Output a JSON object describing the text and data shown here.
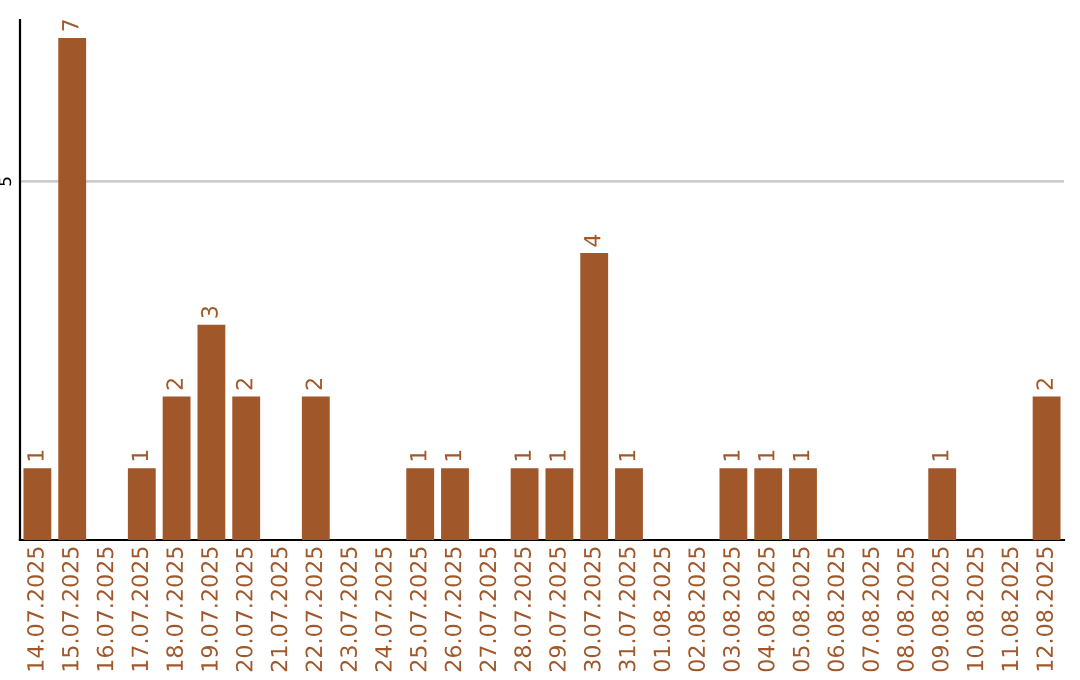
{
  "chart_data": {
    "type": "bar",
    "categories": [
      "14.07.2025",
      "15.07.2025",
      "16.07.2025",
      "17.07.2025",
      "18.07.2025",
      "19.07.2025",
      "20.07.2025",
      "21.07.2025",
      "22.07.2025",
      "23.07.2025",
      "24.07.2025",
      "25.07.2025",
      "26.07.2025",
      "27.07.2025",
      "28.07.2025",
      "29.07.2025",
      "30.07.2025",
      "31.07.2025",
      "01.08.2025",
      "02.08.2025",
      "03.08.2025",
      "04.08.2025",
      "05.08.2025",
      "06.08.2025",
      "07.08.2025",
      "08.08.2025",
      "09.08.2025",
      "10.08.2025",
      "11.08.2025",
      "12.08.2025"
    ],
    "values": [
      1,
      7,
      0,
      1,
      2,
      3,
      2,
      0,
      2,
      0,
      0,
      1,
      1,
      0,
      1,
      1,
      4,
      1,
      0,
      0,
      1,
      1,
      1,
      0,
      0,
      0,
      1,
      0,
      0,
      2
    ],
    "value_labels": [
      "1",
      "7",
      null,
      "1",
      "2",
      "3",
      "2",
      null,
      "2",
      null,
      null,
      "1",
      "1",
      null,
      "1",
      "1",
      "4",
      "1",
      null,
      null,
      "1",
      "1",
      "1",
      null,
      null,
      null,
      "1",
      null,
      null,
      "2"
    ],
    "color": "#a0572a",
    "ylim": [
      0,
      7.25
    ],
    "yticks": [
      5
    ],
    "grid": "y"
  }
}
